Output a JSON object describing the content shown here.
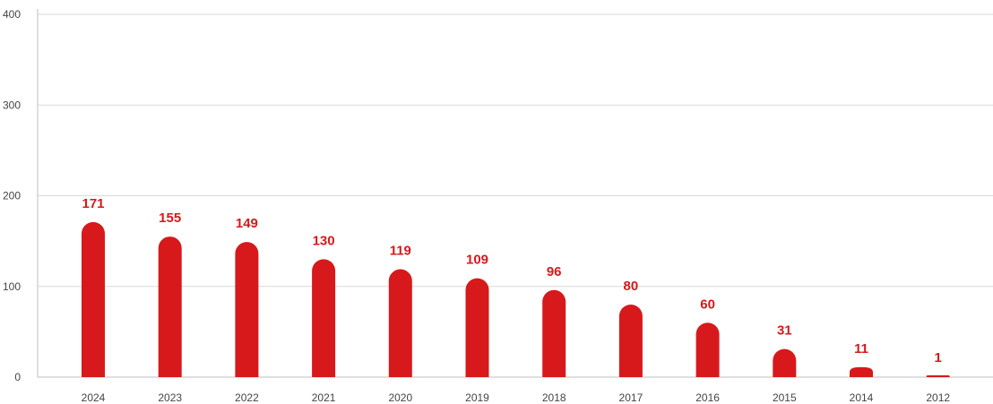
{
  "chart_data": {
    "type": "bar",
    "title": "",
    "xlabel": "",
    "ylabel": "",
    "categories": [
      "2024",
      "2023",
      "2022",
      "2021",
      "2020",
      "2019",
      "2018",
      "2017",
      "2016",
      "2015",
      "2014",
      "2012"
    ],
    "values": [
      171,
      155,
      149,
      130,
      119,
      109,
      96,
      80,
      60,
      31,
      11,
      1
    ],
    "ylim": [
      0,
      400
    ],
    "yticks": [
      "0",
      "100",
      "200",
      "300",
      "400"
    ],
    "data_labels": true,
    "grid": true,
    "legend": "none",
    "colors": {
      "bar": "#d7191c",
      "label": "#d7191c",
      "grid": "#d9d9d9",
      "axis_text": "#444444"
    }
  }
}
